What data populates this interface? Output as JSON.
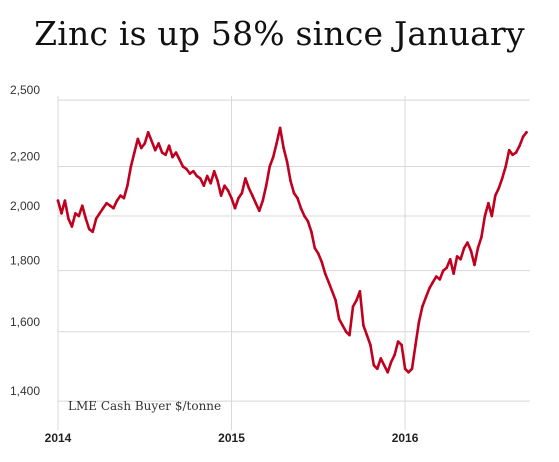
{
  "chart_data": {
    "type": "line",
    "title": "Zinc is up 58% since January",
    "annotation": "LME Cash Buyer $/tonne",
    "xlabel": "",
    "ylabel": "",
    "y_tick_labels": [
      "1,400",
      "1,600",
      "1,800",
      "2,000",
      "2,200",
      "2,500"
    ],
    "y_tick_values": [
      1400,
      1600,
      1800,
      2000,
      2200,
      2500
    ],
    "x_tick_labels": [
      "2014",
      "2015",
      "2016"
    ],
    "x_tick_values": [
      2014.0,
      2015.0,
      2016.0
    ],
    "xlim": [
      2014.0,
      2016.72
    ],
    "ylim": [
      1350,
      2520
    ],
    "y_scale": "log",
    "grid": "horizontal",
    "line_color": "#c0001f",
    "grid_color": "#d8d8d8",
    "series": [
      {
        "x": [
          2014.0,
          2014.02,
          2014.04,
          2014.06,
          2014.08,
          2014.1,
          2014.12,
          2014.14,
          2014.16,
          2014.18,
          2014.2,
          2014.22,
          2014.24,
          2014.26,
          2014.28,
          2014.3,
          2014.32,
          2014.34,
          2014.36,
          2014.38,
          2014.4,
          2014.42,
          2014.44,
          2014.46,
          2014.48,
          2014.5,
          2014.52,
          2014.54,
          2014.56,
          2014.58,
          2014.6,
          2014.62,
          2014.64,
          2014.66,
          2014.68,
          2014.7,
          2014.72,
          2014.74,
          2014.76,
          2014.78,
          2014.8,
          2014.82,
          2014.84,
          2014.86,
          2014.88,
          2014.9,
          2014.92,
          2014.94,
          2014.96,
          2014.98,
          2015.0,
          2015.02,
          2015.04,
          2015.06,
          2015.08,
          2015.1,
          2015.12,
          2015.14,
          2015.16,
          2015.18,
          2015.2,
          2015.22,
          2015.24,
          2015.26,
          2015.28,
          2015.3,
          2015.32,
          2015.34,
          2015.36,
          2015.38,
          2015.4,
          2015.42,
          2015.44,
          2015.46,
          2015.48,
          2015.5,
          2015.52,
          2015.54,
          2015.56,
          2015.58,
          2015.6,
          2015.62,
          2015.64,
          2015.66,
          2015.68,
          2015.7,
          2015.72,
          2015.74,
          2015.76,
          2015.78,
          2015.8,
          2015.82,
          2015.84,
          2015.86,
          2015.88,
          2015.9,
          2015.92,
          2015.94,
          2015.96,
          2015.98,
          2016.0,
          2016.02,
          2016.04,
          2016.06,
          2016.08,
          2016.1,
          2016.12,
          2016.14,
          2016.16,
          2016.18,
          2016.2,
          2016.22,
          2016.24,
          2016.26,
          2016.28,
          2016.3,
          2016.32,
          2016.34,
          2016.36,
          2016.38,
          2016.4,
          2016.42,
          2016.44,
          2016.46,
          2016.48,
          2016.5,
          2016.52,
          2016.54,
          2016.56,
          2016.58,
          2016.6,
          2016.62,
          2016.64,
          2016.66,
          2016.68,
          2016.7
        ],
        "y": [
          2060,
          2010,
          2060,
          1990,
          1960,
          2010,
          2000,
          2040,
          1990,
          1950,
          1940,
          1990,
          2010,
          2030,
          2050,
          2040,
          2030,
          2060,
          2080,
          2070,
          2120,
          2200,
          2260,
          2320,
          2280,
          2300,
          2350,
          2310,
          2270,
          2300,
          2260,
          2250,
          2290,
          2240,
          2260,
          2230,
          2200,
          2190,
          2170,
          2180,
          2160,
          2150,
          2120,
          2160,
          2130,
          2180,
          2140,
          2080,
          2120,
          2100,
          2070,
          2030,
          2070,
          2090,
          2150,
          2110,
          2080,
          2050,
          2020,
          2060,
          2120,
          2200,
          2240,
          2300,
          2370,
          2280,
          2220,
          2140,
          2090,
          2070,
          2030,
          2000,
          1980,
          1940,
          1880,
          1860,
          1830,
          1790,
          1760,
          1730,
          1700,
          1640,
          1620,
          1600,
          1590,
          1680,
          1700,
          1730,
          1620,
          1590,
          1560,
          1500,
          1490,
          1520,
          1500,
          1480,
          1510,
          1530,
          1570,
          1560,
          1490,
          1480,
          1490,
          1560,
          1630,
          1680,
          1710,
          1740,
          1760,
          1780,
          1770,
          1800,
          1810,
          1840,
          1790,
          1850,
          1840,
          1880,
          1900,
          1870,
          1820,
          1880,
          1920,
          2000,
          2050,
          2000,
          2080,
          2110,
          2150,
          2200,
          2270,
          2250,
          2260,
          2290,
          2330,
          2350
        ]
      }
    ]
  }
}
